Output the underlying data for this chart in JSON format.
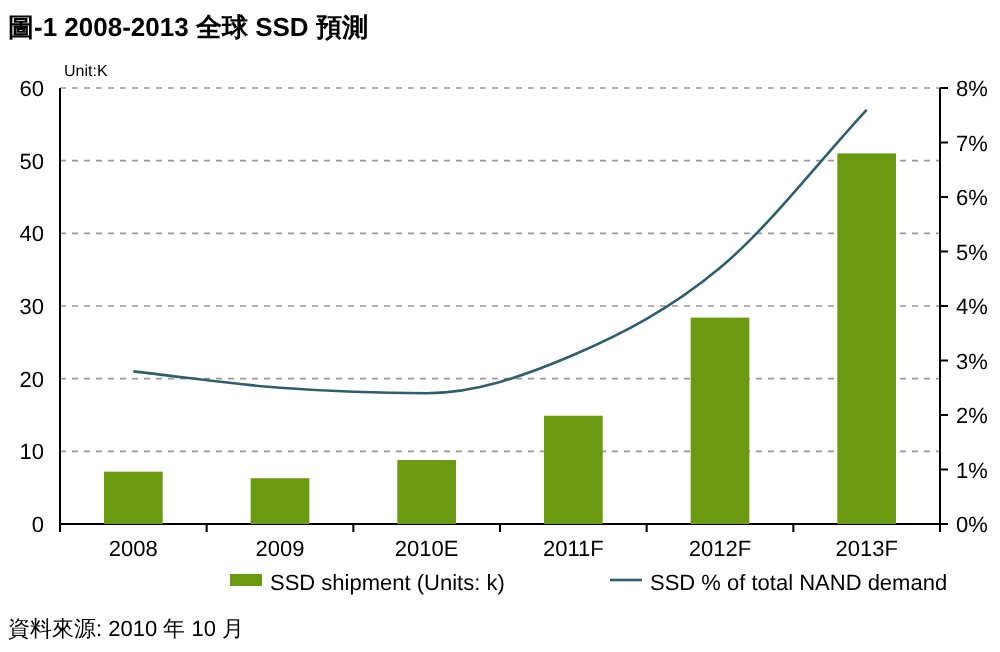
{
  "chart_data": {
    "type": "bar",
    "title": "圖-1 2008-2013 全球 SSD 預測",
    "categories": [
      "2008",
      "2009",
      "2010E",
      "2011F",
      "2012F",
      "2013F"
    ],
    "series": [
      {
        "name": "SSD shipment (Units: k)",
        "color": "#6a9a10",
        "values": [
          7.2,
          6.3,
          8.8,
          14.9,
          28.4,
          51
        ]
      },
      {
        "name": "SSD % of total NAND demand",
        "type": "line",
        "axis": "y2",
        "color": "#2f5f6f",
        "values": [
          2.8,
          2.5,
          2.4,
          3.1,
          4.7,
          7.6
        ]
      }
    ],
    "ylim": [
      0,
      60
    ],
    "yticks": [
      0,
      10,
      20,
      30,
      40,
      50,
      60
    ],
    "y2lim": [
      0,
      8
    ],
    "y2ticks": [
      {
        "value": 0,
        "label": "0%"
      },
      {
        "value": 1,
        "label": "1%"
      },
      {
        "value": 2,
        "label": "2%"
      },
      {
        "value": 3,
        "label": "3%"
      },
      {
        "value": 4,
        "label": "4%"
      },
      {
        "value": 5,
        "label": "5%"
      },
      {
        "value": 6,
        "label": "6%"
      },
      {
        "value": 7,
        "label": "7%"
      },
      {
        "value": 8,
        "label": "8%"
      }
    ],
    "grid": "y",
    "legend": "bottom",
    "annotations": [
      "Unit:K",
      "資料來源: 2010 年 10 月"
    ]
  }
}
